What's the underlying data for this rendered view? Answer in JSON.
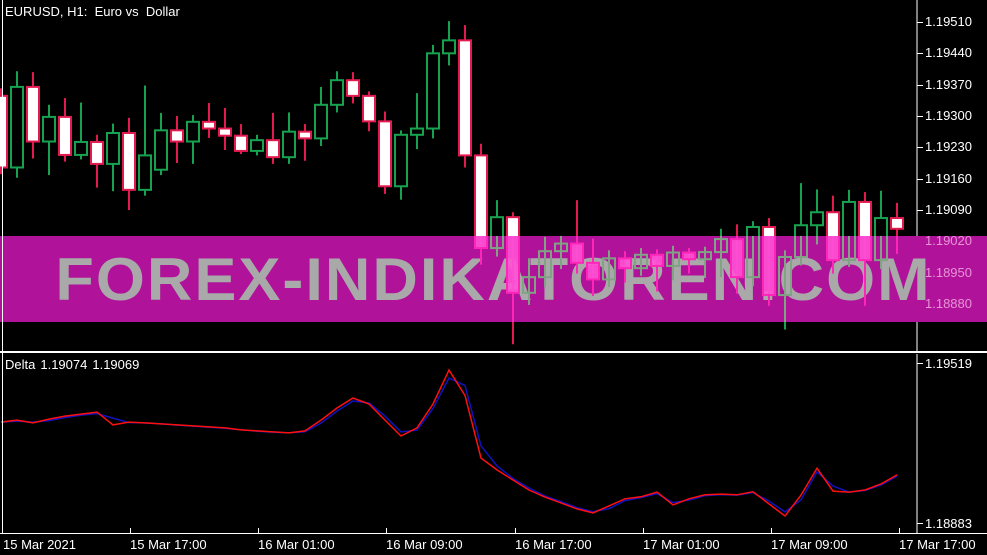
{
  "window": {
    "title": "EURUSD, H1:  Euro vs  Dollar"
  },
  "watermark": {
    "text": "FOREX-INDIKATOREN.COM"
  },
  "indicator": {
    "name": "Delta",
    "value_1": "1.19074",
    "value_2": "1.19069"
  },
  "colors": {
    "background": "#000000",
    "bull": "#17A24F",
    "bear": "#E31A50",
    "bear_fill": "#FFFFFF",
    "band": "#B0139A",
    "band_text": "#A9A9A9",
    "band_bear_fill": "#FF52D6",
    "band_bear_stroke": "#FF25B8",
    "band_bull_stroke": "#7FA383",
    "axis_text": "#FFFFFF",
    "inband_axis_text": "#E793D6",
    "frame": "#FFFFFF",
    "delta_fast": "#FF1010",
    "delta_slow": "#1212C0"
  },
  "chart_data": [
    {
      "type": "candlestick",
      "title": "EURUSD H1: Euro vs Dollar",
      "ylim": [
        1.18775,
        1.19559
      ],
      "grid": false,
      "y_axis_ticks": [
        "1.19510",
        "1.19440",
        "1.19370",
        "1.19300",
        "1.19230",
        "1.19160",
        "1.19090",
        "1.19020",
        "1.18950",
        "1.18880"
      ],
      "x_axis_labels": [
        "15 Mar 2021",
        "15 Mar 17:00",
        "16 Mar 01:00",
        "16 Mar 09:00",
        "16 Mar 17:00",
        "17 Mar 01:00",
        "17 Mar 09:00",
        "17 Mar 17:00"
      ],
      "candles_format": [
        "open",
        "high",
        "low",
        "close"
      ],
      "candles": [
        [
          1.19345,
          1.19362,
          1.1917,
          1.19185
        ],
        [
          1.19185,
          1.194,
          1.19162,
          1.19365
        ],
        [
          1.19365,
          1.19398,
          1.19205,
          1.19243
        ],
        [
          1.19243,
          1.19325,
          1.19168,
          1.19298
        ],
        [
          1.19298,
          1.1934,
          1.19198,
          1.19213
        ],
        [
          1.19213,
          1.1933,
          1.19203,
          1.19242
        ],
        [
          1.19242,
          1.19258,
          1.1914,
          1.19193
        ],
        [
          1.19193,
          1.19283,
          1.19132,
          1.19262
        ],
        [
          1.19262,
          1.19296,
          1.1909,
          1.19135
        ],
        [
          1.19135,
          1.19368,
          1.19122,
          1.19212
        ],
        [
          1.1918,
          1.19307,
          1.19168,
          1.19268
        ],
        [
          1.19268,
          1.193,
          1.19195,
          1.19243
        ],
        [
          1.19243,
          1.19302,
          1.19193,
          1.19287
        ],
        [
          1.19287,
          1.19329,
          1.19251,
          1.19272
        ],
        [
          1.19272,
          1.19318,
          1.19224,
          1.19256
        ],
        [
          1.19256,
          1.19282,
          1.19215,
          1.19222
        ],
        [
          1.19222,
          1.19258,
          1.19212,
          1.19246
        ],
        [
          1.19246,
          1.19307,
          1.19193,
          1.19208
        ],
        [
          1.19208,
          1.19308,
          1.19193,
          1.19265
        ],
        [
          1.19265,
          1.19282,
          1.192,
          1.1925
        ],
        [
          1.1925,
          1.19365,
          1.19233,
          1.19325
        ],
        [
          1.19325,
          1.194,
          1.19308,
          1.1938
        ],
        [
          1.1938,
          1.19398,
          1.19328,
          1.19345
        ],
        [
          1.19345,
          1.19355,
          1.19266,
          1.19288
        ],
        [
          1.19288,
          1.1931,
          1.19126,
          1.19143
        ],
        [
          1.19143,
          1.19268,
          1.19113,
          1.19258
        ],
        [
          1.19258,
          1.19351,
          1.19226,
          1.19272
        ],
        [
          1.19272,
          1.19459,
          1.1925,
          1.1944
        ],
        [
          1.1944,
          1.19512,
          1.19413,
          1.19469
        ],
        [
          1.19469,
          1.19503,
          1.19185,
          1.19212
        ],
        [
          1.19212,
          1.19238,
          1.18968,
          1.19005
        ],
        [
          1.19005,
          1.19112,
          1.18986,
          1.19074
        ],
        [
          1.19074,
          1.19085,
          1.1879,
          1.18905
        ],
        [
          1.18905,
          1.18982,
          1.18878,
          1.1894
        ],
        [
          1.1894,
          1.1903,
          1.18918,
          1.18998
        ],
        [
          1.18998,
          1.19032,
          1.18958,
          1.19015
        ],
        [
          1.19015,
          1.19112,
          1.18948,
          1.18972
        ],
        [
          1.18972,
          1.19026,
          1.18898,
          1.18935
        ],
        [
          1.18935,
          1.19,
          1.18918,
          1.18982
        ],
        [
          1.18982,
          1.18998,
          1.18928,
          1.1896
        ],
        [
          1.1896,
          1.19005,
          1.18943,
          1.1899
        ],
        [
          1.1899,
          1.19002,
          1.18908,
          1.18965
        ],
        [
          1.18965,
          1.1901,
          1.18933,
          1.18995
        ],
        [
          1.18995,
          1.19005,
          1.18948,
          1.1898
        ],
        [
          1.1898,
          1.19008,
          1.18938,
          1.18996
        ],
        [
          1.18996,
          1.19048,
          1.1894,
          1.19025
        ],
        [
          1.19025,
          1.19058,
          1.18903,
          1.1894
        ],
        [
          1.1894,
          1.19065,
          1.1892,
          1.19052
        ],
        [
          1.19052,
          1.19072,
          1.18876,
          1.189
        ],
        [
          1.189,
          1.19,
          1.18823,
          1.18985
        ],
        [
          1.18985,
          1.1915,
          1.18966,
          1.19056
        ],
        [
          1.19056,
          1.19136,
          1.19013,
          1.19085
        ],
        [
          1.19085,
          1.19122,
          1.18948,
          1.18978
        ],
        [
          1.18978,
          1.19135,
          1.18963,
          1.19108
        ],
        [
          1.19108,
          1.1913,
          1.18876,
          1.18978
        ],
        [
          1.18978,
          1.19133,
          1.18958,
          1.19072
        ],
        [
          1.19072,
          1.19106,
          1.18992,
          1.19048
        ]
      ]
    },
    {
      "type": "line",
      "title": "Delta",
      "ylim": [
        1.18843,
        1.19555
      ],
      "grid": false,
      "y_axis_ticks": [
        "1.19519",
        "1.18883"
      ],
      "series": [
        {
          "name": "delta-fast-red",
          "values": [
            1.19284,
            1.19292,
            1.19281,
            1.19296,
            1.19308,
            1.19316,
            1.19324,
            1.19273,
            1.19284,
            1.19281,
            1.19277,
            1.19273,
            1.19269,
            1.19265,
            1.19261,
            1.19253,
            1.19249,
            1.19245,
            1.19241,
            1.19249,
            1.19292,
            1.1934,
            1.1938,
            1.19356,
            1.19292,
            1.19229,
            1.19261,
            1.19356,
            1.19491,
            1.1939,
            1.19141,
            1.19094,
            1.19054,
            1.19014,
            1.18986,
            1.18963,
            1.18939,
            1.18923,
            1.18951,
            1.18979,
            1.18987,
            1.19006,
            1.18955,
            1.18979,
            1.18995,
            1.18998,
            1.18995,
            1.19007,
            1.18959,
            1.18911,
            1.18994,
            1.19101,
            1.1901,
            1.19006,
            1.19014,
            1.19038,
            1.19074
          ]
        },
        {
          "name": "delta-slow-blue",
          "values": [
            1.19284,
            1.19288,
            1.19284,
            1.1929,
            1.19302,
            1.19312,
            1.19318,
            1.193,
            1.19282,
            1.19281,
            1.19277,
            1.19272,
            1.19268,
            1.19264,
            1.1926,
            1.19254,
            1.19248,
            1.19244,
            1.19242,
            1.19246,
            1.1928,
            1.19328,
            1.19368,
            1.1936,
            1.19308,
            1.19245,
            1.19252,
            1.19338,
            1.19459,
            1.1943,
            1.1919,
            1.1911,
            1.1906,
            1.19022,
            1.1899,
            1.18968,
            1.18944,
            1.18928,
            1.1894,
            1.18972,
            1.18984,
            1.19,
            1.18964,
            1.18974,
            1.18992,
            1.18996,
            1.18994,
            1.19004,
            1.1897,
            1.18927,
            1.18975,
            1.19086,
            1.1903,
            1.19006,
            1.19012,
            1.19034,
            1.19069
          ]
        }
      ]
    }
  ]
}
